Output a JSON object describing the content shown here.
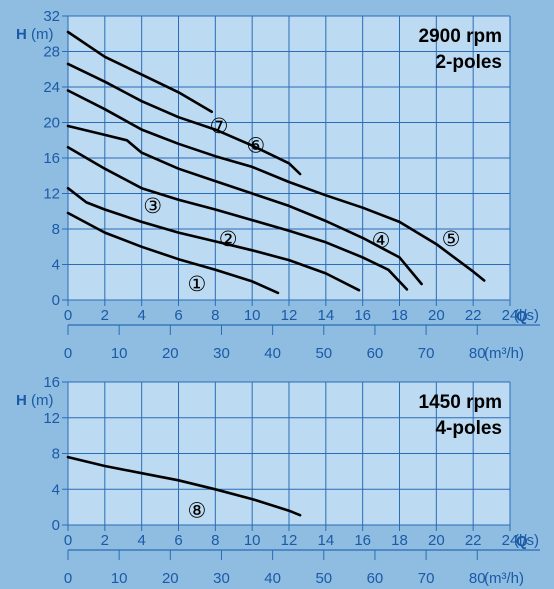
{
  "chart_data": [
    {
      "type": "line",
      "title": "2900 rpm",
      "subtitle": "2-poles",
      "ylabel_bold": "H",
      "ylabel_unit": "(m)",
      "xlabel_unit": "(l/s)",
      "x2label_bold": "Q",
      "x2label_unit": "(m³/h)",
      "xlim": [
        0,
        24
      ],
      "ylim": [
        0,
        32
      ],
      "x_ticks": [
        0,
        2,
        4,
        6,
        8,
        10,
        12,
        14,
        16,
        18,
        20,
        22,
        24
      ],
      "y_ticks": [
        0,
        4,
        8,
        12,
        16,
        20,
        24,
        28,
        32
      ],
      "x2_ticks": [
        0,
        10,
        20,
        30,
        40,
        50,
        60,
        70,
        80
      ],
      "grid": true,
      "series": [
        {
          "name": "①",
          "label_at": [
            7,
            1.8
          ],
          "points": [
            [
              0,
              9.8
            ],
            [
              2,
              7.6
            ],
            [
              4,
              6.0
            ],
            [
              6,
              4.6
            ],
            [
              8,
              3.4
            ],
            [
              10,
              2.1
            ],
            [
              11.4,
              0.8
            ]
          ]
        },
        {
          "name": "②",
          "label_at": [
            8.7,
            6.9
          ],
          "points": [
            [
              0,
              12.6
            ],
            [
              1,
              11.0
            ],
            [
              2,
              10.2
            ],
            [
              4,
              8.8
            ],
            [
              6,
              7.6
            ],
            [
              8,
              6.6
            ],
            [
              10,
              5.6
            ],
            [
              12,
              4.5
            ],
            [
              14,
              3.0
            ],
            [
              15.8,
              1.1
            ]
          ]
        },
        {
          "name": "③",
          "label_at": [
            4.6,
            10.6
          ],
          "points": [
            [
              0,
              17.2
            ],
            [
              2,
              14.8
            ],
            [
              4,
              12.6
            ],
            [
              6,
              11.3
            ],
            [
              8,
              10.2
            ],
            [
              10,
              9.0
            ],
            [
              12,
              7.8
            ],
            [
              14,
              6.5
            ],
            [
              16,
              4.8
            ],
            [
              17.4,
              3.4
            ],
            [
              18.4,
              1.2
            ]
          ]
        },
        {
          "name": "④",
          "label_at": [
            17,
            6.7
          ],
          "points": [
            [
              0,
              19.6
            ],
            [
              2,
              18.6
            ],
            [
              3.2,
              18.0
            ],
            [
              4,
              16.6
            ],
            [
              6,
              14.8
            ],
            [
              8,
              13.4
            ],
            [
              10,
              12.0
            ],
            [
              12,
              10.6
            ],
            [
              14,
              8.9
            ],
            [
              16,
              7.0
            ],
            [
              18,
              4.8
            ],
            [
              19.2,
              1.8
            ]
          ]
        },
        {
          "name": "⑤",
          "label_at": [
            20.8,
            6.9
          ],
          "points": [
            [
              0,
              23.6
            ],
            [
              2,
              21.5
            ],
            [
              4,
              19.2
            ],
            [
              6,
              17.6
            ],
            [
              8,
              16.2
            ],
            [
              10,
              15.0
            ],
            [
              12,
              13.3
            ],
            [
              14,
              11.8
            ],
            [
              16,
              10.4
            ],
            [
              18,
              8.8
            ],
            [
              20,
              6.3
            ],
            [
              22,
              3.2
            ],
            [
              22.6,
              2.2
            ]
          ]
        },
        {
          "name": "⑥",
          "label_at": [
            10.2,
            17.4
          ],
          "points": [
            [
              0,
              26.6
            ],
            [
              2,
              24.6
            ],
            [
              4,
              22.4
            ],
            [
              6,
              20.6
            ],
            [
              8,
              19.2
            ],
            [
              10,
              17.4
            ],
            [
              12,
              15.4
            ],
            [
              12.6,
              14.2
            ]
          ]
        },
        {
          "name": "⑦",
          "label_at": [
            8.2,
            19.6
          ],
          "points": [
            [
              0,
              30.2
            ],
            [
              2,
              27.4
            ],
            [
              4,
              25.4
            ],
            [
              6,
              23.4
            ],
            [
              7.8,
              21.2
            ]
          ]
        }
      ]
    },
    {
      "type": "line",
      "title": "1450 rpm",
      "subtitle": "4-poles",
      "ylabel_bold": "H",
      "ylabel_unit": "(m)",
      "xlabel_unit": "(l/s)",
      "x2label_bold": "Q",
      "x2label_unit": "(m³/h)",
      "xlim": [
        0,
        24
      ],
      "ylim": [
        0,
        16
      ],
      "x_ticks": [
        0,
        2,
        4,
        6,
        8,
        10,
        12,
        14,
        16,
        18,
        20,
        22,
        24
      ],
      "y_ticks": [
        0,
        4,
        8,
        12,
        16
      ],
      "x2_ticks": [
        0,
        10,
        20,
        30,
        40,
        50,
        60,
        70,
        80
      ],
      "grid": true,
      "series": [
        {
          "name": "⑧",
          "label_at": [
            7,
            1.6
          ],
          "points": [
            [
              0,
              7.6
            ],
            [
              2,
              6.6
            ],
            [
              4,
              5.8
            ],
            [
              6,
              5.0
            ],
            [
              8,
              4.0
            ],
            [
              10,
              2.9
            ],
            [
              12,
              1.6
            ],
            [
              12.6,
              1.1
            ]
          ]
        }
      ]
    }
  ]
}
